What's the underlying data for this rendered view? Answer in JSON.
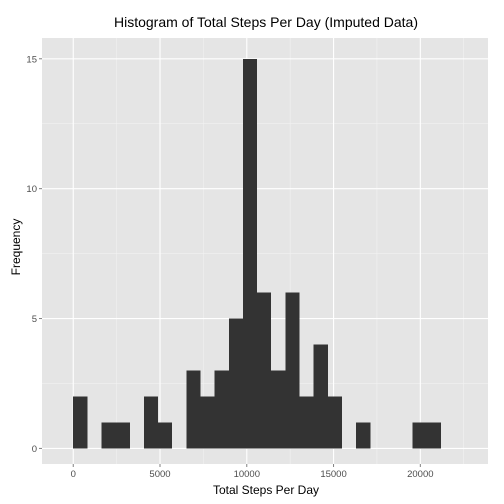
{
  "chart_data": {
    "type": "bar",
    "subtype": "histogram",
    "title": "Histogram of Total Steps Per Day (Imputed Data)",
    "xlabel": "Total Steps Per Day",
    "ylabel": "Frequency",
    "xlim": [
      -1800,
      23900
    ],
    "ylim": [
      -0.6,
      15.8
    ],
    "x_ticks": [
      0,
      5000,
      10000,
      15000,
      20000
    ],
    "x_tick_labels": [
      "0",
      "5000",
      "10000",
      "15000",
      "20000"
    ],
    "y_ticks": [
      0,
      5,
      10,
      15
    ],
    "y_tick_labels": [
      "0",
      "5",
      "10",
      "15"
    ],
    "grid": true,
    "bin_width": 815,
    "bins": [
      {
        "x0": 0,
        "x1": 815,
        "count": 2
      },
      {
        "x0": 815,
        "x1": 1630,
        "count": 0
      },
      {
        "x0": 1630,
        "x1": 2445,
        "count": 1
      },
      {
        "x0": 2445,
        "x1": 3260,
        "count": 1
      },
      {
        "x0": 3260,
        "x1": 4075,
        "count": 0
      },
      {
        "x0": 4075,
        "x1": 4890,
        "count": 2
      },
      {
        "x0": 4890,
        "x1": 5705,
        "count": 1
      },
      {
        "x0": 5705,
        "x1": 6520,
        "count": 0
      },
      {
        "x0": 6520,
        "x1": 7335,
        "count": 3
      },
      {
        "x0": 7335,
        "x1": 8150,
        "count": 2
      },
      {
        "x0": 8150,
        "x1": 8965,
        "count": 3
      },
      {
        "x0": 8965,
        "x1": 9780,
        "count": 5
      },
      {
        "x0": 9780,
        "x1": 10595,
        "count": 15
      },
      {
        "x0": 10595,
        "x1": 11410,
        "count": 6
      },
      {
        "x0": 11410,
        "x1": 12225,
        "count": 3
      },
      {
        "x0": 12225,
        "x1": 13040,
        "count": 6
      },
      {
        "x0": 13040,
        "x1": 13855,
        "count": 2
      },
      {
        "x0": 13855,
        "x1": 14670,
        "count": 4
      },
      {
        "x0": 14670,
        "x1": 15485,
        "count": 2
      },
      {
        "x0": 15485,
        "x1": 16300,
        "count": 0
      },
      {
        "x0": 16300,
        "x1": 17115,
        "count": 1
      },
      {
        "x0": 17115,
        "x1": 17930,
        "count": 0
      },
      {
        "x0": 17930,
        "x1": 18745,
        "count": 0
      },
      {
        "x0": 18745,
        "x1": 19560,
        "count": 0
      },
      {
        "x0": 19560,
        "x1": 20375,
        "count": 1
      },
      {
        "x0": 20375,
        "x1": 21190,
        "count": 1
      }
    ],
    "colors": {
      "panel_background": "#e5e5e5",
      "grid_major": "#ffffff",
      "grid_minor": "#f2f2f2",
      "bar_fill": "#333333",
      "tick_text": "#4d4d4d"
    }
  }
}
